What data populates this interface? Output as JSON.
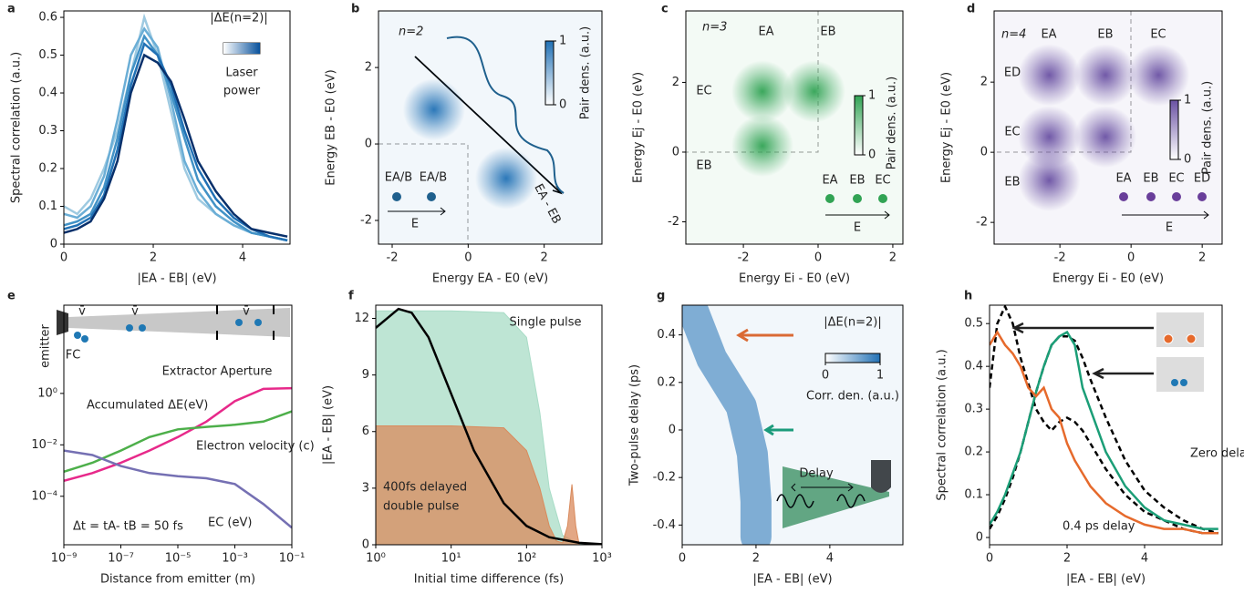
{
  "chart_data": [
    {
      "panel": "a",
      "type": "line",
      "xlabel": "|EA - EB| (eV)",
      "ylabel": "Spectral correlation (a.u.)",
      "x": [
        0,
        0.3,
        0.6,
        0.9,
        1.2,
        1.5,
        1.8,
        2.1,
        2.4,
        2.7,
        3.0,
        3.4,
        3.8,
        4.2,
        4.6,
        5.0
      ],
      "xlim": [
        0,
        5.06
      ],
      "ylim": [
        0,
        0.617
      ],
      "xticks": [
        0,
        2,
        4
      ],
      "yticks": [
        0,
        0.1,
        0.2,
        0.3,
        0.4,
        0.5,
        0.6
      ],
      "annotations": [
        "|ΔE(n=2)|",
        "Laser",
        "power"
      ],
      "series": [
        {
          "color": "#9ecae1",
          "values": [
            0.1,
            0.08,
            0.12,
            0.2,
            0.3,
            0.45,
            0.6,
            0.5,
            0.35,
            0.2,
            0.12,
            0.08,
            0.05,
            0.03,
            0.02,
            0.01
          ]
        },
        {
          "color": "#6baed6",
          "values": [
            0.08,
            0.07,
            0.1,
            0.18,
            0.33,
            0.5,
            0.57,
            0.52,
            0.38,
            0.22,
            0.14,
            0.08,
            0.05,
            0.03,
            0.02,
            0.01
          ]
        },
        {
          "color": "#4292c6",
          "values": [
            0.05,
            0.06,
            0.08,
            0.15,
            0.28,
            0.45,
            0.55,
            0.5,
            0.4,
            0.28,
            0.17,
            0.1,
            0.06,
            0.03,
            0.02,
            0.01
          ]
        },
        {
          "color": "#2171b5",
          "values": [
            0.04,
            0.05,
            0.07,
            0.13,
            0.25,
            0.42,
            0.53,
            0.5,
            0.42,
            0.3,
            0.2,
            0.12,
            0.07,
            0.04,
            0.02,
            0.01
          ]
        },
        {
          "color": "#08306b",
          "values": [
            0.03,
            0.04,
            0.06,
            0.12,
            0.22,
            0.4,
            0.5,
            0.48,
            0.43,
            0.33,
            0.22,
            0.14,
            0.08,
            0.04,
            0.03,
            0.02
          ]
        }
      ]
    },
    {
      "panel": "b",
      "type": "heatmap",
      "color": "#2171b5",
      "xlabel": "Energy EA - E0 (eV)",
      "ylabel": "Energy EB - E0 (eV)",
      "xlim": [
        -2.36,
        3.52
      ],
      "ylim": [
        -2.62,
        3.48
      ],
      "xticks": [
        -2,
        0,
        2
      ],
      "yticks": [
        -2,
        0,
        2
      ],
      "peaks_x": [
        -0.9,
        1
      ],
      "peaks_y": [
        0.9,
        -0.9
      ],
      "colorbar": {
        "label": "Pair dens. (a.u.)",
        "ticks": [
          0,
          1
        ]
      },
      "annotations": [
        "n=2",
        "EA/B",
        "EA/B",
        "E",
        "EA - EB"
      ]
    },
    {
      "panel": "c",
      "type": "heatmap",
      "color": "#31a354",
      "xlabel": "Energy Ei - E0 (eV)",
      "ylabel": "Energy Ej - E0 (eV)",
      "xlim": [
        -3.54,
        2.27
      ],
      "ylim": [
        -2.64,
        4.05
      ],
      "xticks": [
        -2,
        0,
        2
      ],
      "yticks": [
        -2,
        0,
        2
      ],
      "peaks_x": [
        -1.49,
        -0.1,
        -1.49
      ],
      "peaks_y": [
        1.74,
        1.74,
        0.18
      ],
      "colorbar": {
        "label": "Pair dens. (a.u.)",
        "ticks": [
          0,
          1
        ]
      },
      "annotations": [
        "n=3",
        "EA",
        "EB",
        "EC",
        "EB",
        "EA",
        "EB",
        "EC",
        "E"
      ]
    },
    {
      "panel": "d",
      "type": "heatmap",
      "color": "#6a51a3",
      "xlabel": "Energy Ei - E0 (eV)",
      "ylabel": "Energy Ej - E0 (eV)",
      "xlim": [
        -3.85,
        2.56
      ],
      "ylim": [
        -2.62,
        4.03
      ],
      "xticks": [
        -2,
        0,
        2
      ],
      "yticks": [
        -2,
        0,
        2
      ],
      "peaks_x": [
        -2.3,
        -0.72,
        0.77,
        -2.3,
        -0.72,
        -2.3
      ],
      "peaks_y": [
        2.2,
        2.2,
        2.2,
        0.44,
        0.44,
        -0.8
      ],
      "colorbar": {
        "label": "Pair dens. (a.u.)",
        "ticks": [
          0,
          1
        ]
      },
      "annotations": [
        "n=4",
        "EA",
        "EB",
        "EC",
        "ED",
        "EC",
        "EB",
        "EA",
        "EB",
        "EC",
        "ED",
        "E"
      ]
    },
    {
      "panel": "e",
      "type": "line",
      "xlog": true,
      "ylog": true,
      "xlabel": "Distance from emitter (m)",
      "x": [
        1e-09,
        1e-08,
        1e-07,
        1e-06,
        1e-05,
        0.0001,
        0.001,
        0.01,
        0.1
      ],
      "xlim": [
        1e-09,
        0.1
      ],
      "ylim": [
        1.3e-06,
        2700
      ],
      "xticks": [
        {
          "value": 1e-09,
          "label": "10⁻⁹"
        },
        {
          "value": 1e-07,
          "label": "10⁻⁷"
        },
        {
          "value": 1e-05,
          "label": "10⁻⁵"
        },
        {
          "value": 0.001,
          "label": "10⁻³"
        },
        {
          "value": 0.1,
          "label": "10⁻¹"
        }
      ],
      "yticks": [
        {
          "value": 0.0001,
          "label": "10⁻⁴"
        },
        {
          "value": 0.01,
          "label": "10⁻²"
        },
        {
          "value": 1,
          "label": "10⁰"
        }
      ],
      "annotations": [
        "emitter",
        "Extractor Aperture",
        "FC",
        "v̄",
        "v̄",
        "v̄",
        "Δt = tA- tB = 50 fs"
      ],
      "series": [
        {
          "name": "Accumulated ΔE(eV)",
          "color": "#e7298a",
          "values": [
            0.0004,
            0.0008,
            0.002,
            0.006,
            0.02,
            0.08,
            0.5,
            1.5,
            1.6
          ]
        },
        {
          "name": "Electron velocity (c)",
          "color": "#4daf4a",
          "values": [
            0.0009,
            0.002,
            0.006,
            0.02,
            0.04,
            0.05,
            0.06,
            0.08,
            0.2
          ]
        },
        {
          "name": "EC (eV)",
          "color": "#7570b3",
          "values": [
            0.006,
            0.004,
            0.0015,
            0.0008,
            0.0006,
            0.0005,
            0.0003,
            5e-05,
            6e-06
          ]
        }
      ]
    },
    {
      "panel": "f",
      "type": "line",
      "xlog": true,
      "xlabel": "Initial time difference (fs)",
      "ylabel": "|EA - EB| (eV)",
      "xlim": [
        1,
        1000
      ],
      "ylim": [
        0,
        12.7
      ],
      "xticks": [
        {
          "value": 1,
          "label": "10⁰"
        },
        {
          "value": 10,
          "label": "10¹"
        },
        {
          "value": 100,
          "label": "10²"
        },
        {
          "value": 1000,
          "label": "10³"
        }
      ],
      "yticks": [
        0,
        3,
        6,
        9,
        12
      ],
      "annotations": [
        "Single pulse",
        "400fs delayed",
        "double pulse"
      ],
      "series": [
        {
          "color": "#a8dcc6",
          "fill": true,
          "x": [
            1,
            10,
            50,
            100,
            150,
            200,
            300,
            500,
            1000
          ],
          "values": [
            12.4,
            12.4,
            12.3,
            11,
            7,
            3,
            0.5,
            0.05,
            0
          ]
        },
        {
          "color": "#d98a5c",
          "fill": true,
          "x": [
            1,
            10,
            50,
            100,
            150,
            200,
            250,
            300,
            350,
            400,
            450,
            500,
            1000
          ],
          "values": [
            6.3,
            6.3,
            6.2,
            5,
            3,
            1,
            0.2,
            0.1,
            1,
            3.2,
            1,
            0,
            0
          ]
        },
        {
          "color": "#000000",
          "x": [
            1,
            2,
            3,
            5,
            10,
            20,
            50,
            100,
            200,
            500,
            1000
          ],
          "values": [
            11.5,
            12.5,
            12.3,
            11,
            8,
            5,
            2.2,
            1,
            0.4,
            0.1,
            0.03
          ]
        }
      ]
    },
    {
      "panel": "g",
      "type": "heatmap",
      "color": "#2171b5",
      "xlabel": "|EA - EB| (eV)",
      "ylabel": "Two-pulse delay (ps)",
      "xlim": [
        0,
        5.98
      ],
      "ylim": [
        -0.483,
        0.525
      ],
      "xticks": [
        0,
        2,
        4
      ],
      "yticks": [
        -0.4,
        -0.2,
        0.0,
        0.2,
        0.4
      ],
      "colorbar": {
        "label": "Corr. den. (a.u.)",
        "ticks": [
          0,
          1
        ]
      },
      "annotations": [
        "|ΔE(n=2)|",
        "Delay"
      ],
      "series": [
        {
          "color": "#2171b5",
          "x": [
            0.3,
            0.8,
            1.6,
            1.9,
            2.0,
            2.0
          ],
          "values": [
            0.5,
            0.3,
            0.1,
            -0.1,
            -0.3,
            -0.45
          ]
        }
      ]
    },
    {
      "panel": "h",
      "type": "line",
      "xlabel": "|EA - EB| (eV)",
      "ylabel": "Spectral correlation (a.u.)",
      "x": [
        0,
        0.2,
        0.4,
        0.6,
        0.8,
        1,
        1.2,
        1.4,
        1.6,
        1.8,
        2,
        2.2,
        2.4,
        2.6,
        3,
        3.5,
        4,
        4.5,
        5,
        5.5,
        5.9
      ],
      "xlim": [
        0,
        6
      ],
      "ylim": [
        -0.017,
        0.543
      ],
      "xticks": [
        0,
        2,
        4
      ],
      "yticks": [
        0,
        0.1,
        0.2,
        0.3,
        0.4,
        0.5
      ],
      "series": [
        {
          "color": "#000000",
          "dash": true,
          "values": [
            0.35,
            0.5,
            0.54,
            0.5,
            0.42,
            0.36,
            0.3,
            0.27,
            0.25,
            0.27,
            0.28,
            0.27,
            0.25,
            0.22,
            0.16,
            0.1,
            0.06,
            0.04,
            0.02,
            0.01,
            0.01
          ]
        },
        {
          "color": "#000000",
          "dash": true,
          "values": [
            0.02,
            0.05,
            0.09,
            0.14,
            0.2,
            0.27,
            0.34,
            0.4,
            0.45,
            0.47,
            0.47,
            0.46,
            0.42,
            0.37,
            0.28,
            0.18,
            0.11,
            0.07,
            0.04,
            0.02,
            0.01
          ]
        },
        {
          "name": "Zero delay",
          "color": "#1b9e77",
          "values": [
            0.03,
            0.06,
            0.1,
            0.15,
            0.2,
            0.27,
            0.34,
            0.4,
            0.45,
            0.47,
            0.48,
            0.45,
            0.35,
            0.3,
            0.2,
            0.12,
            0.07,
            0.04,
            0.03,
            0.02,
            0.02
          ]
        },
        {
          "name": "0.4 ps delay",
          "color": "#e66a2c",
          "values": [
            0.45,
            0.48,
            0.45,
            0.43,
            0.4,
            0.35,
            0.33,
            0.35,
            0.3,
            0.28,
            0.22,
            0.18,
            0.15,
            0.12,
            0.08,
            0.05,
            0.03,
            0.02,
            0.02,
            0.01,
            0.01
          ]
        }
      ]
    }
  ]
}
